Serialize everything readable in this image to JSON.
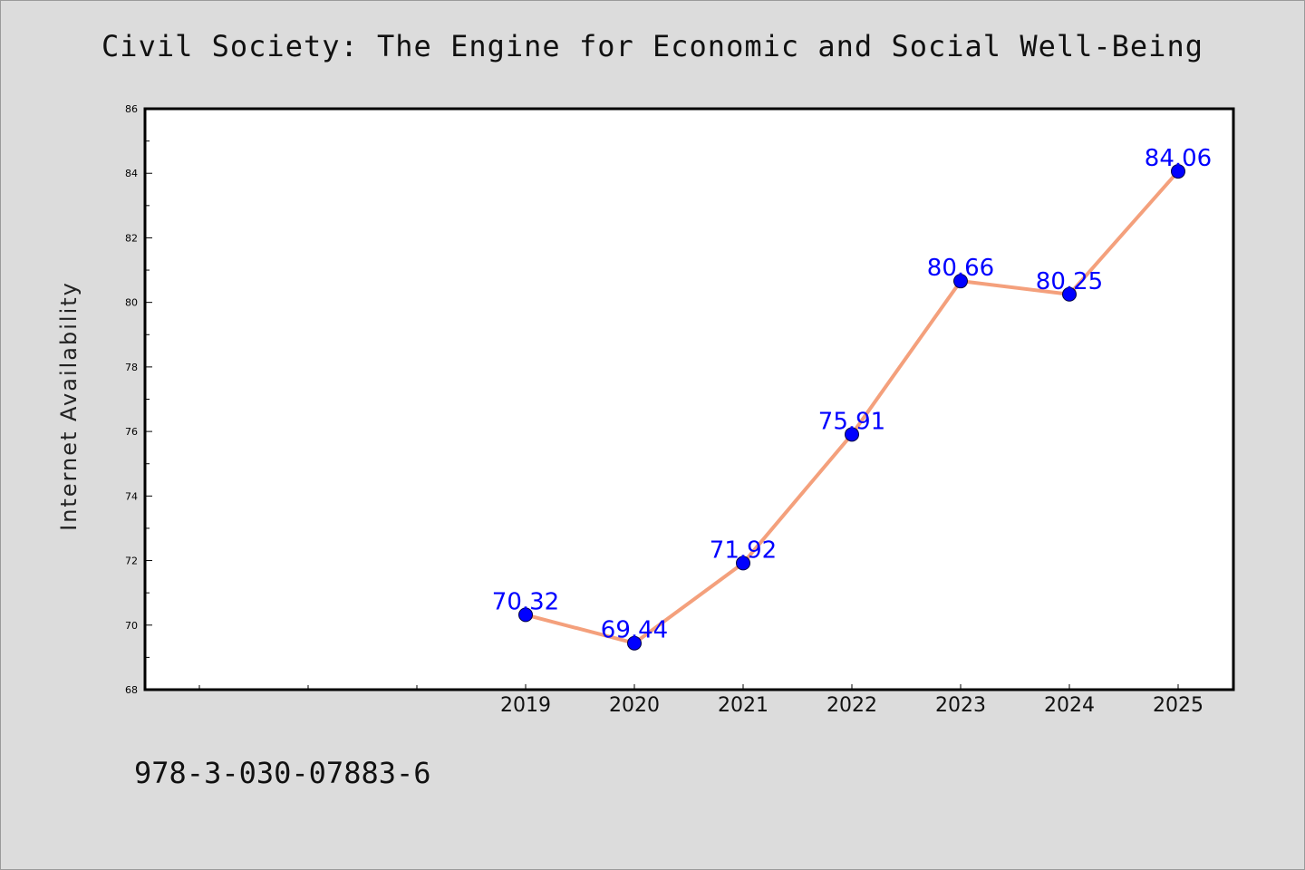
{
  "chart_data": {
    "type": "line",
    "title": "Civil Society: The Engine for Economic and Social Well-Being",
    "xlabel": "",
    "ylabel": "Internet Availability",
    "x": [
      "2019",
      "2020",
      "2021",
      "2022",
      "2023",
      "2024",
      "2025"
    ],
    "series": [
      {
        "values": [
          70.32,
          69.44,
          71.92,
          75.91,
          80.66,
          80.25,
          84.06
        ],
        "data_labels": [
          "70.32",
          "69.44",
          "71.92",
          "75.91",
          "80.66",
          "80.25",
          "84.06"
        ]
      }
    ],
    "ylim": [
      68,
      86
    ],
    "y_ticks": [
      "68",
      "70",
      "72",
      "74",
      "76",
      "78",
      "80",
      "82",
      "84",
      "86"
    ],
    "grid": false,
    "legend": "none",
    "colors": {
      "line": "#f4a07c",
      "marker": "#0000ff",
      "data_label": "#0000ff",
      "plot_background": "#ffffff",
      "page_background": "#dcdcdc"
    }
  },
  "footnote": "978-3-030-07883-6"
}
